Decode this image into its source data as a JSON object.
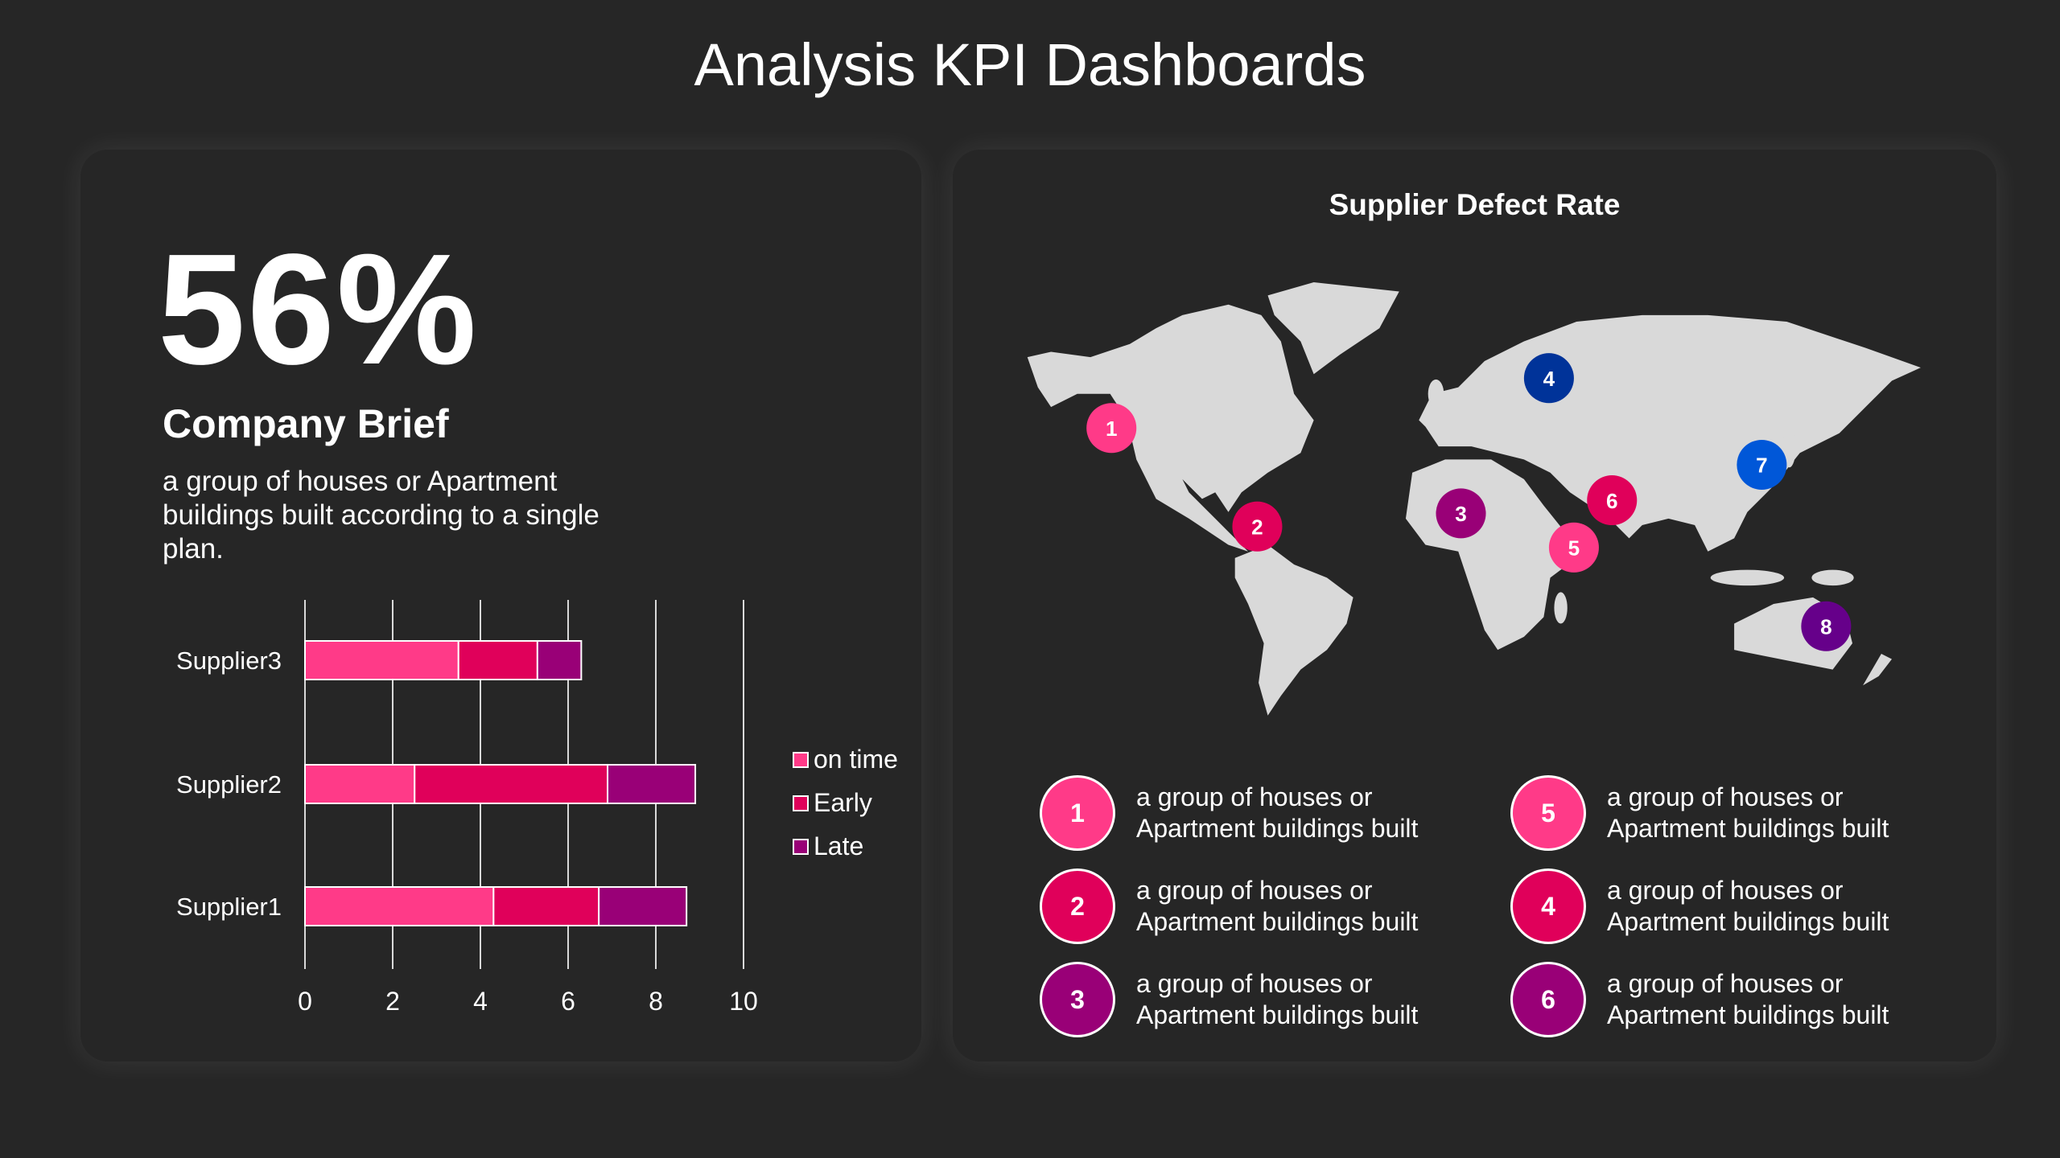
{
  "title": "Analysis KPI Dashboards",
  "kpi": {
    "value": "56%",
    "heading": "Company Brief",
    "description": "a group of houses or Apartment buildings built according to a single plan."
  },
  "chart_data": {
    "type": "bar",
    "orientation": "horizontal-stacked",
    "categories": [
      "Supplier3",
      "Supplier2",
      "Supplier1"
    ],
    "series": [
      {
        "name": "on time",
        "color": "#ff3a88",
        "values": [
          3.5,
          2.5,
          4.3
        ]
      },
      {
        "name": "Early",
        "color": "#e0005a",
        "values": [
          1.8,
          4.4,
          2.4
        ]
      },
      {
        "name": "Late",
        "color": "#990077",
        "values": [
          1.0,
          2.0,
          2.0
        ]
      }
    ],
    "xlim": [
      0,
      10
    ],
    "xticks": [
      "0",
      "2",
      "4",
      "6",
      "8",
      "10"
    ],
    "grid": true,
    "legend": "right"
  },
  "map": {
    "title": "Supplier Defect Rate",
    "markers": [
      {
        "label": "1",
        "color": "#ff3a88"
      },
      {
        "label": "2",
        "color": "#e0005a"
      },
      {
        "label": "3",
        "color": "#990077"
      },
      {
        "label": "4",
        "color": "#003399"
      },
      {
        "label": "5",
        "color": "#ff3a88"
      },
      {
        "label": "6",
        "color": "#e0005a"
      },
      {
        "label": "7",
        "color": "#0057d8"
      },
      {
        "label": "8",
        "color": "#66008a"
      }
    ]
  },
  "list": [
    {
      "num": "1",
      "color": "#ff3a88",
      "line1": "a group of houses or",
      "line2": "Apartment buildings built"
    },
    {
      "num": "2",
      "color": "#e0005a",
      "line1": "a group of houses or",
      "line2": "Apartment buildings built"
    },
    {
      "num": "3",
      "color": "#990077",
      "line1": "a group of houses or",
      "line2": "Apartment buildings built"
    },
    {
      "num": "5",
      "color": "#ff3a88",
      "line1": "a group of houses or",
      "line2": "Apartment buildings built"
    },
    {
      "num": "4",
      "color": "#e0005a",
      "line1": "a group of houses or",
      "line2": "Apartment buildings built"
    },
    {
      "num": "6",
      "color": "#990077",
      "line1": "a group of houses or",
      "line2": "Apartment buildings built"
    }
  ]
}
